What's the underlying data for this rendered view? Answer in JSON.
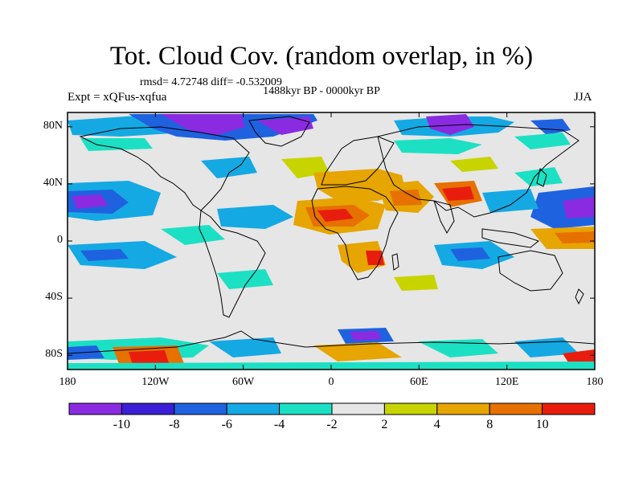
{
  "title": "Tot. Cloud Cov. (random overlap, in %)",
  "stats": "rmsd= 4.72748 diff= -0.532009",
  "period": "1488kyr BP - 0000kyr BP",
  "experiment": "Expt = xQFus-xqfua",
  "season": "JJA",
  "map": {
    "lon_range": [
      -180,
      180
    ],
    "lat_range": [
      -90,
      90
    ],
    "background_color": "#e6e6e6",
    "coastline_color": "#000000",
    "lat_tick_labels": [
      "80N",
      "40N",
      "0",
      "40S",
      "80S"
    ],
    "lon_tick_labels": [
      "180",
      "120W",
      "60W",
      "0",
      "60E",
      "120E",
      "180"
    ]
  },
  "colorbar": {
    "colors": [
      "#8a2be2",
      "#3a1fd6",
      "#1f62e0",
      "#14a9e3",
      "#1ce0c4",
      "#e6e6e6",
      "#c8d400",
      "#e6a500",
      "#e67000",
      "#e81d0e"
    ],
    "labels": [
      "-10",
      "-8",
      "-6",
      "-4",
      "-2",
      "2",
      "4",
      "8",
      "10"
    ]
  }
}
